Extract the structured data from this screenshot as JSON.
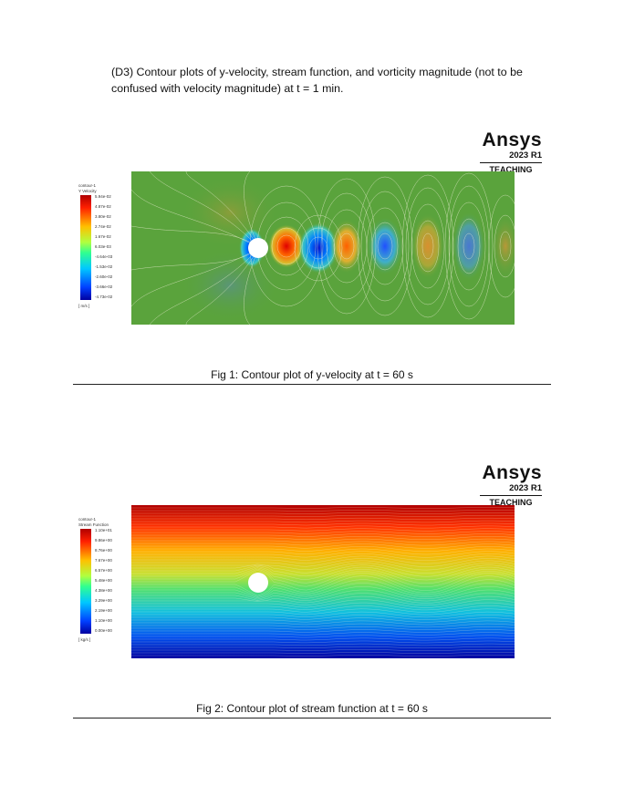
{
  "intro": "(D3) Contour plots of y-velocity, stream function, and vorticity magnitude (not to be confused with velocity magnitude) at t = 1 min.",
  "brand": {
    "name": "Ansys",
    "version": "2023 R1",
    "edition": "TEACHING"
  },
  "figures": [
    {
      "legend_title1": "contour-1",
      "legend_title2": "Y Velocity",
      "ticks": [
        "5.94e-02",
        "4.87e-02",
        "3.80e-02",
        "2.74e-02",
        "1.67e-02",
        "6.03e-03",
        "-4.64e-03",
        "-1.53e-02",
        "-2.60e-02",
        "-3.66e-02",
        "-4.73e-02"
      ],
      "unit": "[ m/s ]",
      "caption": "Fig 1: Contour plot of y-velocity at t = 60 s"
    },
    {
      "legend_title1": "contour-1",
      "legend_title2": "Stream Function",
      "ticks": [
        "1.10e+01",
        "9.86e+00",
        "8.76e+00",
        "7.67e+00",
        "6.57e+00",
        "5.48e+00",
        "4.38e+00",
        "3.29e+00",
        "2.19e+00",
        "1.10e+00",
        "0.00e+00"
      ],
      "unit": "[ kg/s ]",
      "caption": "Fig 2: Contour plot of stream function at t = 60 s"
    }
  ]
}
